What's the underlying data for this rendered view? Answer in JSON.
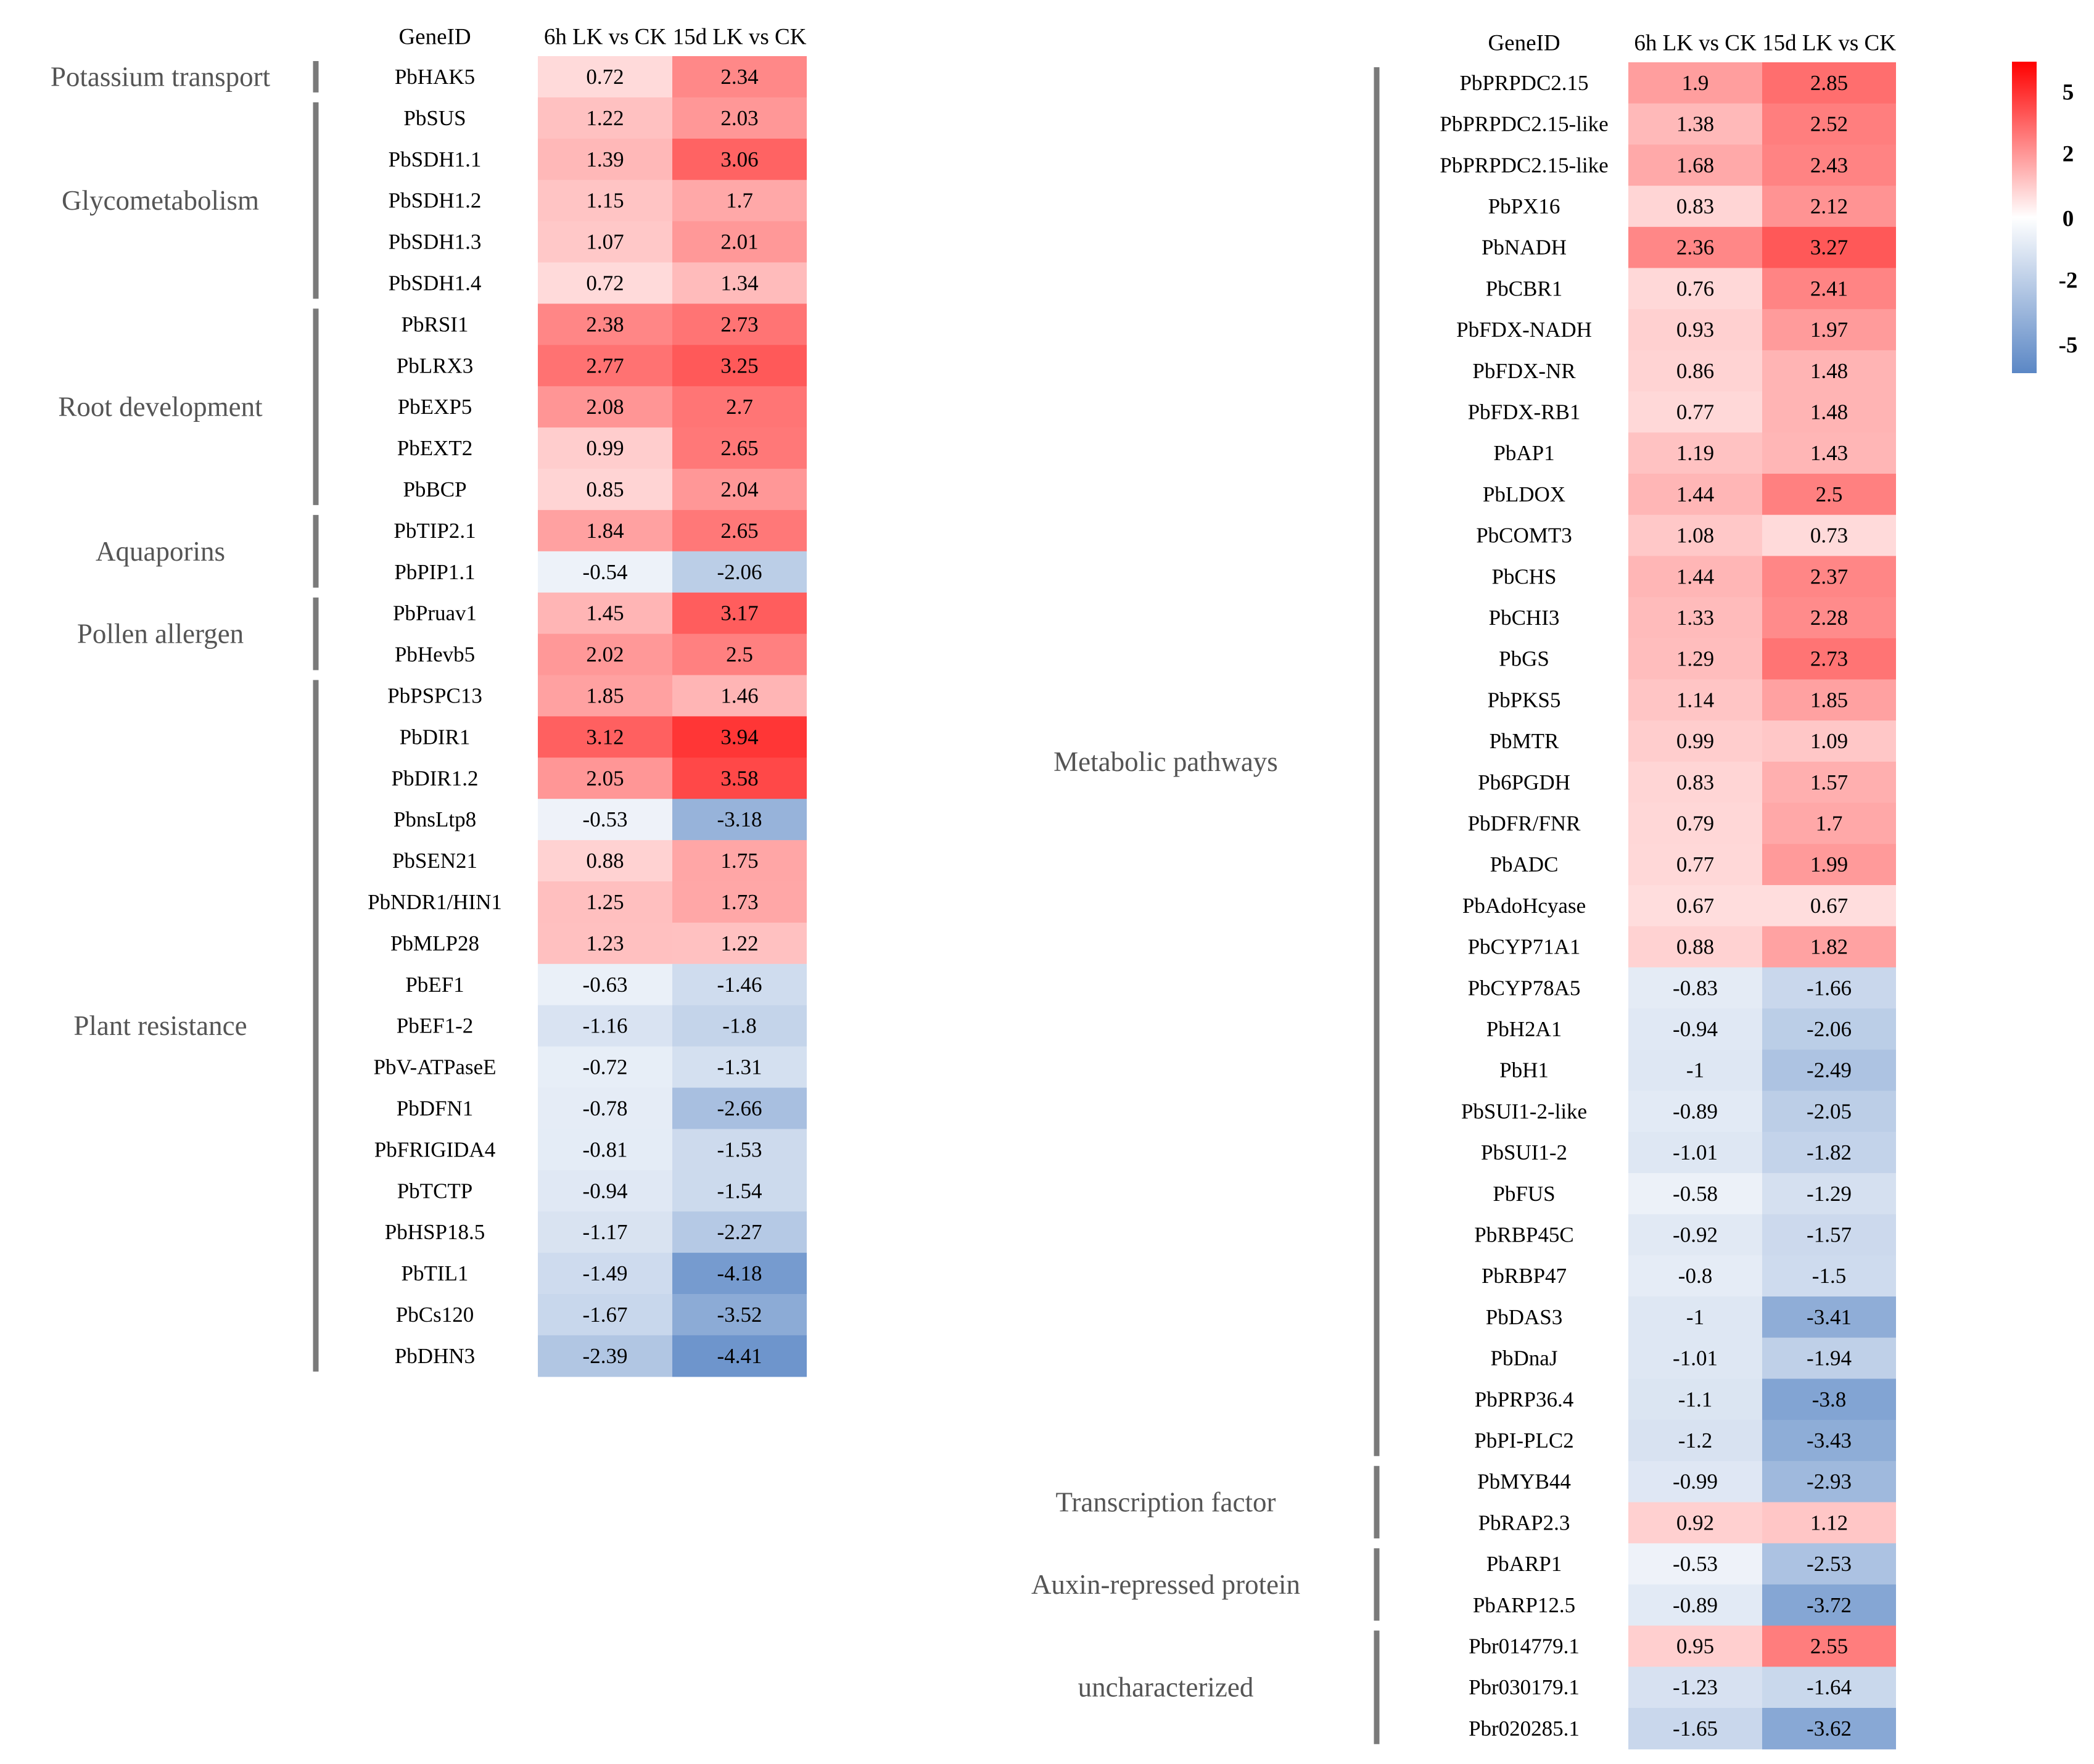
{
  "chart_data": {
    "type": "heatmap",
    "title": "",
    "color_scale": {
      "min": -5,
      "mid": 0,
      "max": 5,
      "low_color": "#5b87c5",
      "mid_color": "#ffffff",
      "high_color": "#ff0000",
      "ticks": [
        "5",
        "2",
        "0",
        "-2",
        "-5"
      ]
    },
    "panels": [
      {
        "id": "left",
        "columns": [
          "GeneID",
          "6h LK vs CK",
          "15d LK vs CK"
        ],
        "groups": [
          {
            "label": "Potassium transport",
            "rows": [
              {
                "gene": "PbHAK5",
                "v6h": "0.72",
                "v15d": "2.34"
              }
            ]
          },
          {
            "label": "Glycometabolism",
            "rows": [
              {
                "gene": "PbSUS",
                "v6h": "1.22",
                "v15d": "2.03"
              },
              {
                "gene": "PbSDH1.1",
                "v6h": "1.39",
                "v15d": "3.06"
              },
              {
                "gene": "PbSDH1.2",
                "v6h": "1.15",
                "v15d": "1.7"
              },
              {
                "gene": "PbSDH1.3",
                "v6h": "1.07",
                "v15d": "2.01"
              },
              {
                "gene": "PbSDH1.4",
                "v6h": "0.72",
                "v15d": "1.34"
              }
            ]
          },
          {
            "label": "Root development",
            "rows": [
              {
                "gene": "PbRSI1",
                "v6h": "2.38",
                "v15d": "2.73"
              },
              {
                "gene": "PbLRX3",
                "v6h": "2.77",
                "v15d": "3.25"
              },
              {
                "gene": "PbEXP5",
                "v6h": "2.08",
                "v15d": "2.7"
              },
              {
                "gene": "PbEXT2",
                "v6h": "0.99",
                "v15d": "2.65"
              },
              {
                "gene": "PbBCP",
                "v6h": "0.85",
                "v15d": "2.04"
              }
            ]
          },
          {
            "label": "Aquaporins",
            "rows": [
              {
                "gene": "PbTIP2.1",
                "v6h": "1.84",
                "v15d": "2.65"
              },
              {
                "gene": "PbPIP1.1",
                "v6h": "-0.54",
                "v15d": "-2.06"
              }
            ]
          },
          {
            "label": "Pollen allergen",
            "rows": [
              {
                "gene": "PbPruav1",
                "v6h": "1.45",
                "v15d": "3.17"
              },
              {
                "gene": "PbHevb5",
                "v6h": "2.02",
                "v15d": "2.5"
              }
            ]
          },
          {
            "label": "Plant resistance",
            "rows": [
              {
                "gene": "PbPSPC13",
                "v6h": "1.85",
                "v15d": "1.46"
              },
              {
                "gene": "PbDIR1",
                "v6h": "3.12",
                "v15d": "3.94"
              },
              {
                "gene": "PbDIR1.2",
                "v6h": "2.05",
                "v15d": "3.58"
              },
              {
                "gene": "PbnsLtp8",
                "v6h": "-0.53",
                "v15d": "-3.18"
              },
              {
                "gene": "PbSEN21",
                "v6h": "0.88",
                "v15d": "1.75"
              },
              {
                "gene": "PbNDR1/HIN1",
                "v6h": "1.25",
                "v15d": "1.73"
              },
              {
                "gene": "PbMLP28",
                "v6h": "1.23",
                "v15d": "1.22"
              },
              {
                "gene": "PbEF1",
                "v6h": "-0.63",
                "v15d": "-1.46"
              },
              {
                "gene": "PbEF1-2",
                "v6h": "-1.16",
                "v15d": "-1.8"
              },
              {
                "gene": "PbV-ATPaseE",
                "v6h": "-0.72",
                "v15d": "-1.31"
              },
              {
                "gene": "PbDFN1",
                "v6h": "-0.78",
                "v15d": "-2.66"
              },
              {
                "gene": "PbFRIGIDA4",
                "v6h": "-0.81",
                "v15d": "-1.53"
              },
              {
                "gene": "PbTCTP",
                "v6h": "-0.94",
                "v15d": "-1.54"
              },
              {
                "gene": "PbHSP18.5",
                "v6h": "-1.17",
                "v15d": "-2.27"
              },
              {
                "gene": "PbTIL1",
                "v6h": "-1.49",
                "v15d": "-4.18"
              },
              {
                "gene": "PbCs120",
                "v6h": "-1.67",
                "v15d": "-3.52"
              },
              {
                "gene": "PbDHN3",
                "v6h": "-2.39",
                "v15d": "-4.41"
              }
            ]
          }
        ]
      },
      {
        "id": "right",
        "columns": [
          "GeneID",
          "6h LK vs CK",
          "15d LK vs CK"
        ],
        "groups": [
          {
            "label": "Metabolic pathways",
            "rows": [
              {
                "gene": "PbPRPDC2.15",
                "v6h": "1.9",
                "v15d": "2.85"
              },
              {
                "gene": "PbPRPDC2.15-like",
                "v6h": "1.38",
                "v15d": "2.52"
              },
              {
                "gene": "PbPRPDC2.15-like",
                "v6h": "1.68",
                "v15d": "2.43"
              },
              {
                "gene": "PbPX16",
                "v6h": "0.83",
                "v15d": "2.12"
              },
              {
                "gene": "PbNADH",
                "v6h": "2.36",
                "v15d": "3.27"
              },
              {
                "gene": "PbCBR1",
                "v6h": "0.76",
                "v15d": "2.41"
              },
              {
                "gene": "PbFDX-NADH",
                "v6h": "0.93",
                "v15d": "1.97"
              },
              {
                "gene": "PbFDX-NR",
                "v6h": "0.86",
                "v15d": "1.48"
              },
              {
                "gene": "PbFDX-RB1",
                "v6h": "0.77",
                "v15d": "1.48"
              },
              {
                "gene": "PbAP1",
                "v6h": "1.19",
                "v15d": "1.43"
              },
              {
                "gene": "PbLDOX",
                "v6h": "1.44",
                "v15d": "2.5"
              },
              {
                "gene": "PbCOMT3",
                "v6h": "1.08",
                "v15d": "0.73"
              },
              {
                "gene": "PbCHS",
                "v6h": "1.44",
                "v15d": "2.37"
              },
              {
                "gene": "PbCHI3",
                "v6h": "1.33",
                "v15d": "2.28"
              },
              {
                "gene": "PbGS",
                "v6h": "1.29",
                "v15d": "2.73"
              },
              {
                "gene": "PbPKS5",
                "v6h": "1.14",
                "v15d": "1.85"
              },
              {
                "gene": "PbMTR",
                "v6h": "0.99",
                "v15d": "1.09"
              },
              {
                "gene": "Pb6PGDH",
                "v6h": "0.83",
                "v15d": "1.57"
              },
              {
                "gene": "PbDFR/FNR",
                "v6h": "0.79",
                "v15d": "1.7"
              },
              {
                "gene": "PbADC",
                "v6h": "0.77",
                "v15d": "1.99"
              },
              {
                "gene": "PbAdoHcyase",
                "v6h": "0.67",
                "v15d": "0.67"
              },
              {
                "gene": "PbCYP71A1",
                "v6h": "0.88",
                "v15d": "1.82"
              },
              {
                "gene": "PbCYP78A5",
                "v6h": "-0.83",
                "v15d": "-1.66"
              },
              {
                "gene": "PbH2A1",
                "v6h": "-0.94",
                "v15d": "-2.06"
              },
              {
                "gene": "PbH1",
                "v6h": "-1",
                "v15d": "-2.49"
              },
              {
                "gene": "PbSUI1-2-like",
                "v6h": "-0.89",
                "v15d": "-2.05"
              },
              {
                "gene": "PbSUI1-2",
                "v6h": "-1.01",
                "v15d": "-1.82"
              },
              {
                "gene": "PbFUS",
                "v6h": "-0.58",
                "v15d": "-1.29"
              },
              {
                "gene": "PbRBP45C",
                "v6h": "-0.92",
                "v15d": "-1.57"
              },
              {
                "gene": "PbRBP47",
                "v6h": "-0.8",
                "v15d": "-1.5"
              },
              {
                "gene": "PbDAS3",
                "v6h": "-1",
                "v15d": "-3.41"
              },
              {
                "gene": "PbDnaJ",
                "v6h": "-1.01",
                "v15d": "-1.94"
              },
              {
                "gene": "PbPRP36.4",
                "v6h": "-1.1",
                "v15d": "-3.8"
              },
              {
                "gene": "PbPI-PLC2",
                "v6h": "-1.2",
                "v15d": "-3.43"
              }
            ]
          },
          {
            "label": "Transcription factor",
            "rows": [
              {
                "gene": "PbMYB44",
                "v6h": "-0.99",
                "v15d": "-2.93"
              },
              {
                "gene": "PbRAP2.3",
                "v6h": "0.92",
                "v15d": "1.12"
              }
            ]
          },
          {
            "label": "Auxin-repressed protein",
            "rows": [
              {
                "gene": "PbARP1",
                "v6h": "-0.53",
                "v15d": "-2.53"
              },
              {
                "gene": "PbARP12.5",
                "v6h": "-0.89",
                "v15d": "-3.72"
              }
            ]
          },
          {
            "label": "uncharacterized",
            "rows": [
              {
                "gene": "Pbr014779.1",
                "v6h": "0.95",
                "v15d": "2.55"
              },
              {
                "gene": "Pbr030179.1",
                "v6h": "-1.23",
                "v15d": "-1.64"
              },
              {
                "gene": "Pbr020285.1",
                "v6h": "-1.65",
                "v15d": "-3.62"
              }
            ]
          }
        ]
      }
    ]
  }
}
